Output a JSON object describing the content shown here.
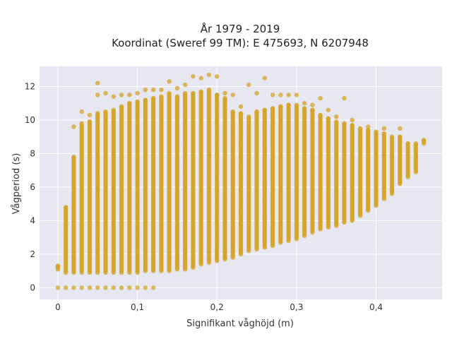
{
  "chart_data": {
    "type": "scatter",
    "title": "År 1979 - 2019",
    "subtitle": "Koordinat (Sweref 99 TM): E 475693, N 6207948",
    "xlabel": "Signifikant våghöjd (m)",
    "ylabel": "Vågperiod (s)",
    "xlim": [
      -0.023,
      0.483
    ],
    "ylim": [
      -0.7,
      13.2
    ],
    "x_ticks": [
      0,
      0.1,
      0.2,
      0.3,
      0.4
    ],
    "x_tick_labels": [
      "0",
      "0,1",
      "0,2",
      "0,3",
      "0,4"
    ],
    "y_ticks": [
      0,
      2,
      4,
      6,
      8,
      10,
      12
    ],
    "y_tick_labels": [
      "0",
      "2",
      "4",
      "6",
      "8",
      "10",
      "12"
    ],
    "grid": true,
    "legend": "none",
    "colors": {
      "marker": "#d4a325",
      "plot_bg": "#e6e7f0",
      "grid": "#ffffff"
    },
    "columns": [
      {
        "x": 0.0,
        "y_min": 1.1,
        "y_max": 1.3,
        "extra": []
      },
      {
        "x": 0.01,
        "y_min": 0.9,
        "y_max": 4.8,
        "extra": []
      },
      {
        "x": 0.02,
        "y_min": 0.9,
        "y_max": 7.8,
        "extra": [
          9.6
        ]
      },
      {
        "x": 0.03,
        "y_min": 0.9,
        "y_max": 9.8,
        "extra": [
          10.5
        ]
      },
      {
        "x": 0.04,
        "y_min": 0.9,
        "y_max": 9.9,
        "extra": [
          10.3
        ]
      },
      {
        "x": 0.05,
        "y_min": 0.9,
        "y_max": 10.4,
        "extra": [
          11.5,
          12.2
        ]
      },
      {
        "x": 0.06,
        "y_min": 0.9,
        "y_max": 10.5,
        "extra": [
          11.6
        ]
      },
      {
        "x": 0.07,
        "y_min": 0.9,
        "y_max": 10.6,
        "extra": [
          11.4
        ]
      },
      {
        "x": 0.08,
        "y_min": 0.9,
        "y_max": 10.8,
        "extra": [
          11.5
        ]
      },
      {
        "x": 0.09,
        "y_min": 0.9,
        "y_max": 11.0,
        "extra": [
          11.5
        ]
      },
      {
        "x": 0.1,
        "y_min": 0.9,
        "y_max": 11.1,
        "extra": [
          11.6
        ]
      },
      {
        "x": 0.11,
        "y_min": 1.0,
        "y_max": 11.2,
        "extra": [
          11.8
        ]
      },
      {
        "x": 0.12,
        "y_min": 1.0,
        "y_max": 11.3,
        "extra": [
          11.8
        ]
      },
      {
        "x": 0.13,
        "y_min": 1.0,
        "y_max": 11.4,
        "extra": [
          11.8
        ]
      },
      {
        "x": 0.14,
        "y_min": 1.0,
        "y_max": 11.6,
        "extra": [
          12.3
        ]
      },
      {
        "x": 0.15,
        "y_min": 1.1,
        "y_max": 11.4,
        "extra": [
          11.9
        ]
      },
      {
        "x": 0.16,
        "y_min": 1.1,
        "y_max": 11.6,
        "extra": [
          12.1
        ]
      },
      {
        "x": 0.17,
        "y_min": 1.2,
        "y_max": 11.6,
        "extra": [
          12.6
        ]
      },
      {
        "x": 0.18,
        "y_min": 1.4,
        "y_max": 11.7,
        "extra": [
          12.5
        ]
      },
      {
        "x": 0.19,
        "y_min": 1.5,
        "y_max": 11.8,
        "extra": [
          12.7
        ]
      },
      {
        "x": 0.2,
        "y_min": 1.6,
        "y_max": 11.5,
        "extra": [
          12.6
        ]
      },
      {
        "x": 0.21,
        "y_min": 1.7,
        "y_max": 11.3,
        "extra": [
          11.6
        ]
      },
      {
        "x": 0.22,
        "y_min": 1.8,
        "y_max": 10.5,
        "extra": [
          11.5
        ]
      },
      {
        "x": 0.23,
        "y_min": 2.0,
        "y_max": 10.4,
        "extra": [
          10.8
        ]
      },
      {
        "x": 0.24,
        "y_min": 2.2,
        "y_max": 10.2,
        "extra": [
          12.1
        ]
      },
      {
        "x": 0.25,
        "y_min": 2.3,
        "y_max": 10.5,
        "extra": [
          11.6
        ]
      },
      {
        "x": 0.26,
        "y_min": 2.4,
        "y_max": 10.6,
        "extra": [
          12.5
        ]
      },
      {
        "x": 0.27,
        "y_min": 2.5,
        "y_max": 10.7,
        "extra": [
          11.5
        ]
      },
      {
        "x": 0.28,
        "y_min": 2.7,
        "y_max": 10.8,
        "extra": [
          11.5
        ]
      },
      {
        "x": 0.29,
        "y_min": 2.8,
        "y_max": 10.9,
        "extra": [
          11.5
        ]
      },
      {
        "x": 0.3,
        "y_min": 2.9,
        "y_max": 10.9,
        "extra": [
          11.5
        ]
      },
      {
        "x": 0.31,
        "y_min": 3.1,
        "y_max": 10.7,
        "extra": [
          11.0
        ]
      },
      {
        "x": 0.32,
        "y_min": 3.3,
        "y_max": 10.6,
        "extra": [
          10.9
        ]
      },
      {
        "x": 0.33,
        "y_min": 3.5,
        "y_max": 10.3,
        "extra": [
          11.3
        ]
      },
      {
        "x": 0.34,
        "y_min": 3.6,
        "y_max": 10.1,
        "extra": [
          10.6
        ]
      },
      {
        "x": 0.35,
        "y_min": 3.7,
        "y_max": 9.9,
        "extra": [
          10.2
        ]
      },
      {
        "x": 0.36,
        "y_min": 3.9,
        "y_max": 9.8,
        "extra": [
          11.3
        ]
      },
      {
        "x": 0.37,
        "y_min": 4.0,
        "y_max": 9.7,
        "extra": [
          10.0
        ]
      },
      {
        "x": 0.38,
        "y_min": 4.3,
        "y_max": 9.5,
        "extra": []
      },
      {
        "x": 0.39,
        "y_min": 4.6,
        "y_max": 9.4,
        "extra": [
          9.6
        ]
      },
      {
        "x": 0.4,
        "y_min": 4.9,
        "y_max": 9.3,
        "extra": []
      },
      {
        "x": 0.41,
        "y_min": 5.3,
        "y_max": 9.2,
        "extra": [
          9.5
        ]
      },
      {
        "x": 0.42,
        "y_min": 5.6,
        "y_max": 9.0,
        "extra": []
      },
      {
        "x": 0.43,
        "y_min": 6.2,
        "y_max": 9.0,
        "extra": [
          9.5
        ]
      },
      {
        "x": 0.44,
        "y_min": 6.6,
        "y_max": 8.6,
        "extra": []
      },
      {
        "x": 0.45,
        "y_min": 6.9,
        "y_max": 8.6,
        "extra": []
      },
      {
        "x": 0.46,
        "y_min": 8.6,
        "y_max": 8.8,
        "extra": []
      }
    ],
    "zero_points": [
      0.0,
      0.01,
      0.02,
      0.03,
      0.04,
      0.05,
      0.06,
      0.07,
      0.08,
      0.09,
      0.1,
      0.11,
      0.12
    ]
  }
}
